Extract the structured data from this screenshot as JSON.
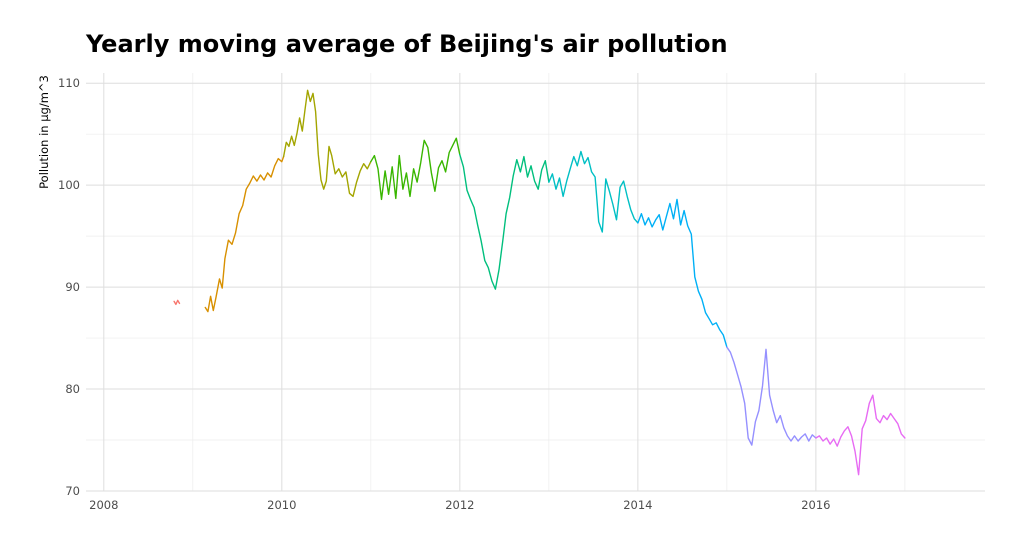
{
  "chart_data": {
    "type": "line",
    "title": "Yearly moving average of Beijing's air pollution",
    "xlabel": "",
    "ylabel": "Pollution in µg/m^3",
    "xlim": [
      2007.8,
      2017.9
    ],
    "ylim": [
      70,
      111
    ],
    "x_ticks": [
      2008,
      2010,
      2012,
      2014,
      2016
    ],
    "x_tick_labels": [
      "2008",
      "2010",
      "2012",
      "2014",
      "2016"
    ],
    "y_ticks": [
      70,
      80,
      90,
      100,
      110
    ],
    "y_tick_labels": [
      "70",
      "80",
      "90",
      "100",
      "110"
    ],
    "grid": true,
    "legend": "none",
    "series": [
      {
        "color": "#F8766D",
        "x": [
          2008.79,
          2008.81,
          2008.83,
          2008.85
        ],
        "y": [
          88.6,
          88.3,
          88.7,
          88.4
        ]
      },
      {
        "color": "#D89000",
        "x": [
          2009.14,
          2009.17,
          2009.2,
          2009.23,
          2009.26,
          2009.3,
          2009.33,
          2009.36,
          2009.4,
          2009.44,
          2009.48,
          2009.52,
          2009.56,
          2009.6,
          2009.64,
          2009.68,
          2009.72,
          2009.76,
          2009.8,
          2009.84,
          2009.88,
          2009.92,
          2009.96,
          2010.0,
          2010.02
        ],
        "y": [
          88.0,
          87.6,
          89.1,
          87.7,
          89.0,
          90.8,
          89.9,
          92.8,
          94.6,
          94.2,
          95.3,
          97.2,
          98.0,
          99.6,
          100.2,
          100.9,
          100.4,
          101.0,
          100.5,
          101.2,
          100.8,
          101.9,
          102.6,
          102.3,
          102.8
        ]
      },
      {
        "color": "#A3A500",
        "x": [
          2010.02,
          2010.05,
          2010.08,
          2010.11,
          2010.14,
          2010.17,
          2010.2,
          2010.23,
          2010.26,
          2010.29,
          2010.32,
          2010.35,
          2010.38,
          2010.41,
          2010.44,
          2010.47,
          2010.5,
          2010.53,
          2010.56,
          2010.6,
          2010.64,
          2010.68,
          2010.72,
          2010.76,
          2010.8,
          2010.84,
          2010.88,
          2010.92,
          2010.96,
          2011.0
        ],
        "y": [
          102.8,
          104.2,
          103.8,
          104.8,
          103.9,
          105.1,
          106.6,
          105.3,
          107.4,
          109.3,
          108.2,
          109.0,
          107.2,
          103.0,
          100.5,
          99.6,
          100.4,
          103.8,
          102.9,
          101.1,
          101.6,
          100.8,
          101.3,
          99.2,
          98.9,
          100.3,
          101.4,
          102.1,
          101.6,
          102.3
        ]
      },
      {
        "color": "#39B600",
        "x": [
          2011.0,
          2011.04,
          2011.08,
          2011.12,
          2011.16,
          2011.2,
          2011.24,
          2011.28,
          2011.32,
          2011.36,
          2011.4,
          2011.44,
          2011.48,
          2011.52,
          2011.56,
          2011.6,
          2011.64,
          2011.68,
          2011.72,
          2011.76,
          2011.8,
          2011.84,
          2011.88,
          2011.92,
          2011.96,
          2012.0
        ],
        "y": [
          102.3,
          102.9,
          101.6,
          98.6,
          101.4,
          99.1,
          101.8,
          98.7,
          102.9,
          99.6,
          101.2,
          98.9,
          101.6,
          100.3,
          102.2,
          104.4,
          103.7,
          101.2,
          99.4,
          101.7,
          102.4,
          101.3,
          103.2,
          103.9,
          104.6,
          103.0
        ]
      },
      {
        "color": "#00BF7D",
        "x": [
          2012.0,
          2012.04,
          2012.08,
          2012.12,
          2012.16,
          2012.2,
          2012.24,
          2012.28,
          2012.32,
          2012.36,
          2012.4,
          2012.44,
          2012.48,
          2012.52,
          2012.56,
          2012.6,
          2012.64,
          2012.68,
          2012.72,
          2012.76,
          2012.8,
          2012.84,
          2012.88,
          2012.92,
          2012.96,
          2013.0
        ],
        "y": [
          103.0,
          101.8,
          99.5,
          98.6,
          97.8,
          96.1,
          94.5,
          92.6,
          91.9,
          90.6,
          89.8,
          91.7,
          94.4,
          97.2,
          98.8,
          100.9,
          102.5,
          101.3,
          102.8,
          100.8,
          101.9,
          100.4,
          99.6,
          101.5,
          102.4,
          100.3
        ]
      },
      {
        "color": "#00BFC4",
        "x": [
          2013.0,
          2013.04,
          2013.08,
          2013.12,
          2013.16,
          2013.2,
          2013.24,
          2013.28,
          2013.32,
          2013.36,
          2013.4,
          2013.44,
          2013.48,
          2013.52,
          2013.56,
          2013.6,
          2013.64,
          2013.68,
          2013.72,
          2013.76,
          2013.8,
          2013.84,
          2013.88,
          2013.92,
          2013.96,
          2014.0
        ],
        "y": [
          100.3,
          101.1,
          99.6,
          100.7,
          98.9,
          100.4,
          101.6,
          102.8,
          101.9,
          103.3,
          102.1,
          102.7,
          101.3,
          100.8,
          96.4,
          95.4,
          100.6,
          99.4,
          98.1,
          96.6,
          99.8,
          100.4,
          98.9,
          97.6,
          96.7,
          96.3
        ]
      },
      {
        "color": "#00B0F6",
        "x": [
          2014.0,
          2014.04,
          2014.08,
          2014.12,
          2014.16,
          2014.2,
          2014.24,
          2014.28,
          2014.32,
          2014.36,
          2014.4,
          2014.44,
          2014.48,
          2014.52,
          2014.56,
          2014.6,
          2014.64,
          2014.68,
          2014.72,
          2014.76,
          2014.8,
          2014.84,
          2014.88,
          2014.92,
          2014.96,
          2015.0
        ],
        "y": [
          96.3,
          97.2,
          96.1,
          96.8,
          95.9,
          96.6,
          97.1,
          95.6,
          96.9,
          98.2,
          96.7,
          98.6,
          96.1,
          97.5,
          96.0,
          95.2,
          91.0,
          89.6,
          88.8,
          87.5,
          86.9,
          86.3,
          86.5,
          85.8,
          85.3,
          84.1
        ]
      },
      {
        "color": "#9590FF",
        "x": [
          2015.0,
          2015.04,
          2015.08,
          2015.12,
          2015.16,
          2015.2,
          2015.24,
          2015.28,
          2015.32,
          2015.36,
          2015.4,
          2015.44,
          2015.48,
          2015.52,
          2015.56,
          2015.6,
          2015.64,
          2015.68,
          2015.72,
          2015.76,
          2015.8,
          2015.84,
          2015.88,
          2015.92,
          2015.96,
          2016.0
        ],
        "y": [
          84.1,
          83.6,
          82.6,
          81.4,
          80.2,
          78.6,
          75.2,
          74.5,
          76.8,
          77.9,
          80.3,
          83.9,
          79.4,
          77.9,
          76.7,
          77.4,
          76.2,
          75.4,
          74.9,
          75.4,
          74.9,
          75.3,
          75.6,
          74.9,
          75.5,
          75.2
        ]
      },
      {
        "color": "#E76BF3",
        "x": [
          2016.0,
          2016.04,
          2016.08,
          2016.12,
          2016.16,
          2016.2,
          2016.24,
          2016.28,
          2016.32,
          2016.36,
          2016.4,
          2016.44,
          2016.48,
          2016.52,
          2016.56,
          2016.6,
          2016.64,
          2016.68,
          2016.72,
          2016.76,
          2016.8,
          2016.84,
          2016.88,
          2016.92,
          2016.96,
          2017.0
        ],
        "y": [
          75.2,
          75.4,
          74.9,
          75.2,
          74.6,
          75.1,
          74.4,
          75.3,
          75.9,
          76.3,
          75.4,
          73.9,
          71.6,
          76.1,
          76.9,
          78.6,
          79.4,
          77.1,
          76.7,
          77.4,
          77.0,
          77.6,
          77.1,
          76.6,
          75.6,
          75.2
        ]
      }
    ]
  }
}
